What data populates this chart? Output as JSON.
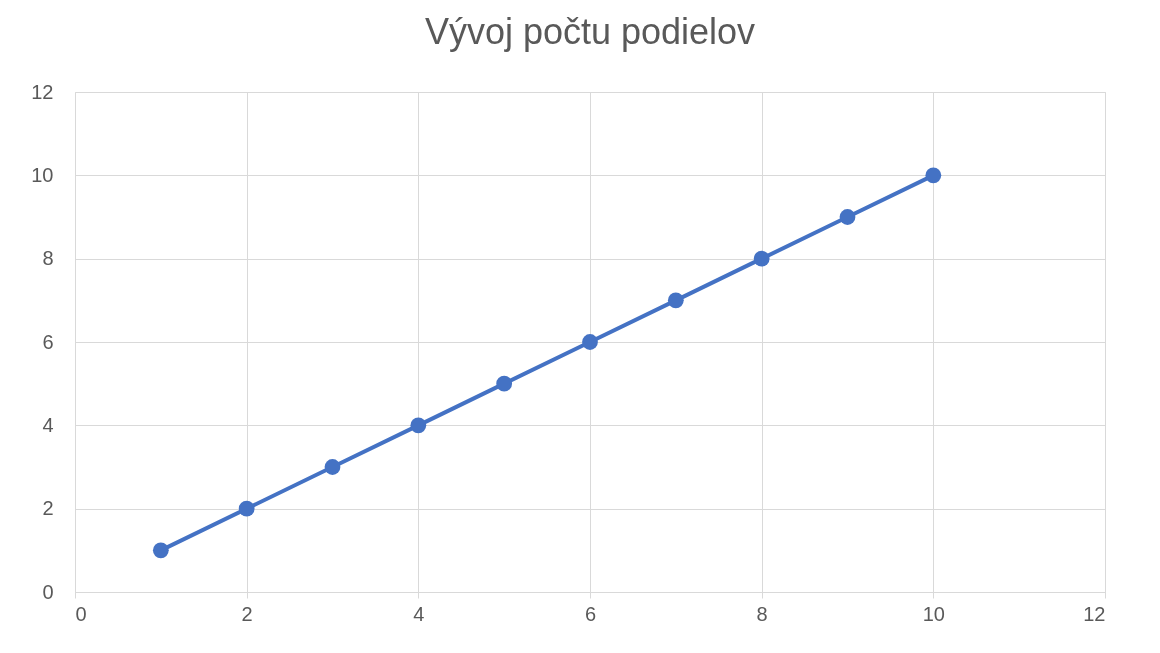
{
  "chart_data": {
    "type": "line",
    "title": "Vývoj počtu podielov",
    "x": [
      1,
      2,
      3,
      4,
      5,
      6,
      7,
      8,
      9,
      10
    ],
    "series": [
      {
        "color": "#4472c4",
        "values": [
          1,
          2,
          3,
          4,
          5,
          6,
          7,
          8,
          9,
          10
        ]
      }
    ],
    "xlim": [
      0,
      12
    ],
    "xticks": [
      0,
      2,
      4,
      6,
      8,
      10,
      12
    ],
    "ylim": [
      0,
      12
    ],
    "yticks": [
      0,
      2,
      4,
      6,
      8,
      10,
      12
    ],
    "grid": true,
    "marker": "circle",
    "line_style": "solid"
  }
}
